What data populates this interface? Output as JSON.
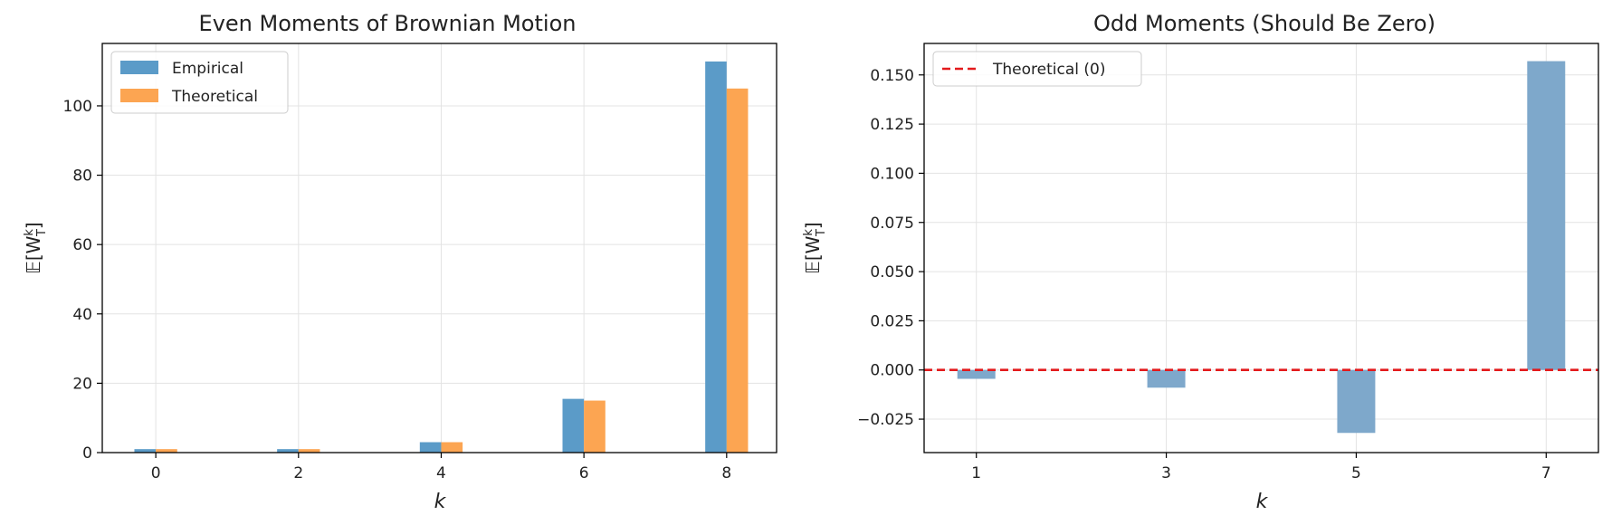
{
  "colors": {
    "empirical": "#5b9bc8",
    "theoretical": "#fca552",
    "odd_bar": "#7ea8cb",
    "zero_line": "#e31a1c"
  },
  "chart_data": [
    {
      "type": "bar",
      "title": "Even Moments of Brownian Motion",
      "xlabel": "k",
      "ylabel": "𝔼[W",
      "ylabel_sup": "k",
      "ylabel_sub": "T",
      "ylabel_close": "]",
      "categories": [
        "0",
        "2",
        "4",
        "6",
        "8"
      ],
      "x": [
        0,
        2,
        4,
        6,
        8
      ],
      "xlim": [
        -0.75,
        8.7
      ],
      "ylim": [
        0,
        118
      ],
      "yticks": [
        0,
        20,
        40,
        60,
        80,
        100
      ],
      "ytick_labels": [
        "0",
        "20",
        "40",
        "60",
        "80",
        "100"
      ],
      "grid": true,
      "legend_position": "top-left",
      "series": [
        {
          "name": "Empirical",
          "values": [
            1.0,
            1.0,
            3.0,
            15.5,
            112.8
          ]
        },
        {
          "name": "Theoretical",
          "values": [
            1.0,
            1.0,
            3.0,
            15.0,
            105.0
          ]
        }
      ]
    },
    {
      "type": "bar",
      "title": "Odd Moments (Should Be Zero)",
      "xlabel": "k",
      "ylabel": "𝔼[W",
      "ylabel_sup": "k",
      "ylabel_sub": "T",
      "ylabel_close": "]",
      "categories": [
        "1",
        "3",
        "5",
        "7"
      ],
      "x": [
        1,
        3,
        5,
        7
      ],
      "xlim": [
        0.45,
        7.55
      ],
      "ylim": [
        -0.042,
        0.166
      ],
      "yticks": [
        -0.025,
        0.0,
        0.025,
        0.05,
        0.075,
        0.1,
        0.125,
        0.15
      ],
      "ytick_labels": [
        "−0.025",
        "0.000",
        "0.025",
        "0.050",
        "0.075",
        "0.100",
        "0.125",
        "0.150"
      ],
      "grid": true,
      "legend_position": "top-left",
      "series": [
        {
          "name": "Empirical",
          "values": [
            -0.0045,
            -0.009,
            -0.032,
            0.157
          ]
        }
      ],
      "reference_line": {
        "name": "Theoretical (0)",
        "value": 0
      }
    }
  ]
}
